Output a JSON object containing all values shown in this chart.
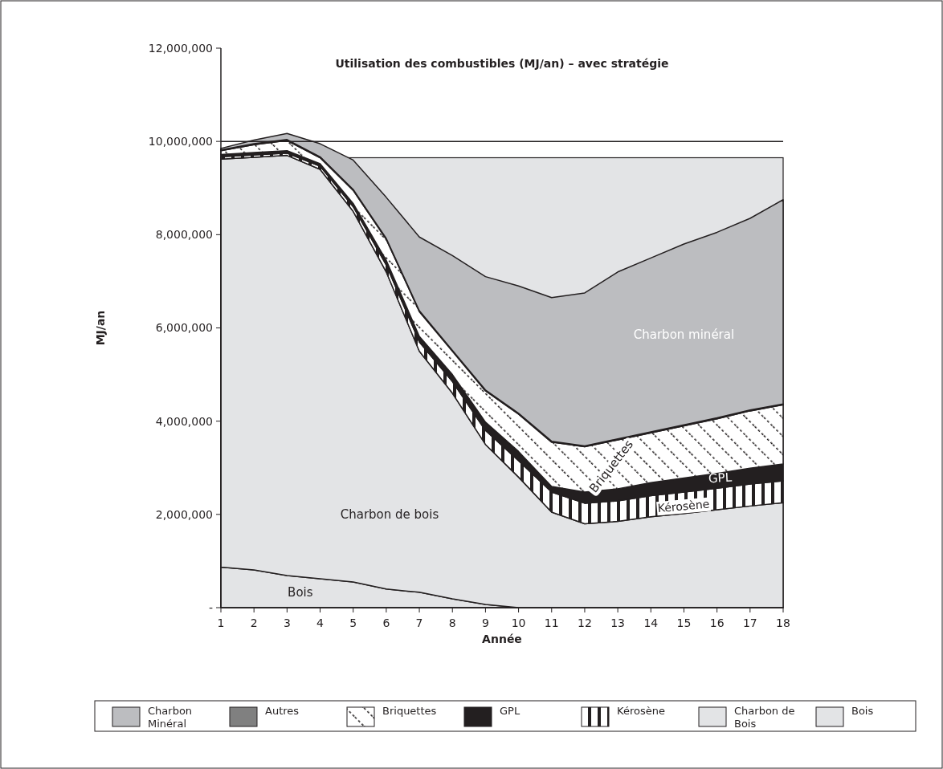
{
  "chart_data": {
    "type": "area",
    "stacked": true,
    "title": "Utilisation des combustibles (MJ/an) – avec stratégie",
    "xlabel": "Année",
    "ylabel": "MJ/an",
    "x": [
      1,
      2,
      3,
      4,
      5,
      6,
      7,
      8,
      9,
      10,
      11,
      12,
      13,
      14,
      15,
      16,
      17,
      18
    ],
    "xlim": [
      1,
      18
    ],
    "xticks": [
      1,
      2,
      3,
      4,
      5,
      6,
      7,
      8,
      9,
      10,
      11,
      12,
      13,
      14,
      15,
      16,
      17,
      18
    ],
    "ylim": [
      0,
      12000000
    ],
    "yticks": [
      {
        "value": 0,
        "label": "-"
      },
      {
        "value": 2000000,
        "label": "2,000,000"
      },
      {
        "value": 4000000,
        "label": "4,000,000"
      },
      {
        "value": 6000000,
        "label": "6,000,000"
      },
      {
        "value": 8000000,
        "label": "8,000,000"
      },
      {
        "value": 10000000,
        "label": "10,000,000"
      },
      {
        "value": 12000000,
        "label": "12,000,000"
      }
    ],
    "series": [
      {
        "name": "Bois",
        "color": "#e3e4e6",
        "values": [
          870000,
          810000,
          690000,
          620000,
          550000,
          400000,
          330000,
          190000,
          70000,
          0,
          0,
          0,
          0,
          0,
          0,
          0,
          0,
          0
        ]
      },
      {
        "name": "Charbon de Bois",
        "color": "#e3e4e6",
        "values": [
          8750000,
          8850000,
          9010000,
          8780000,
          7950000,
          6800000,
          5170000,
          4410000,
          3430000,
          2800000,
          2050000,
          1800000,
          1850000,
          1950000,
          2020000,
          2100000,
          2180000,
          2250000
        ]
      },
      {
        "name": "Kérosène",
        "color": "#231f20",
        "values": [
          50000,
          50000,
          50000,
          70000,
          100000,
          150000,
          200000,
          250000,
          300000,
          350000,
          430000,
          440000,
          440000,
          450000,
          460000,
          460000,
          470000,
          470000
        ]
      },
      {
        "name": "GPL",
        "color": "#231f20",
        "values": [
          50000,
          50000,
          50000,
          50000,
          70000,
          100000,
          120000,
          150000,
          180000,
          200000,
          120000,
          240000,
          260000,
          280000,
          300000,
          320000,
          340000,
          360000
        ]
      },
      {
        "name": "Briquettes",
        "color": "#231f20",
        "values": [
          80000,
          170000,
          220000,
          130000,
          280000,
          450000,
          530000,
          500000,
          670000,
          800000,
          950000,
          970000,
          1050000,
          1070000,
          1120000,
          1170000,
          1230000,
          1270000
        ]
      },
      {
        "name": "Autres",
        "color": "#808080",
        "values": [
          20000,
          20000,
          20000,
          20000,
          20000,
          20000,
          20000,
          20000,
          20000,
          20000,
          20000,
          20000,
          20000,
          20000,
          20000,
          20000,
          20000,
          20000
        ]
      },
      {
        "name": "Charbon Minéral",
        "color": "#bcbdc0",
        "values": [
          30000,
          80000,
          130000,
          280000,
          630000,
          880000,
          1580000,
          2030000,
          2430000,
          2730000,
          3080000,
          3280000,
          3580000,
          3730000,
          3880000,
          3980000,
          4110000,
          4380000
        ]
      }
    ],
    "bands": [
      {
        "axis": "y",
        "from": 0,
        "to": 9650000,
        "color": "#e3e4e6"
      }
    ],
    "ref_lines": [
      {
        "axis": "y",
        "value": 10000000,
        "color": "#231f20"
      }
    ],
    "annotations": [
      "Charbon minéral",
      "Briquettes",
      "GPL",
      "Kérosène",
      "Charbon de bois",
      "Bois"
    ],
    "legend": "bottom",
    "grid": false
  }
}
